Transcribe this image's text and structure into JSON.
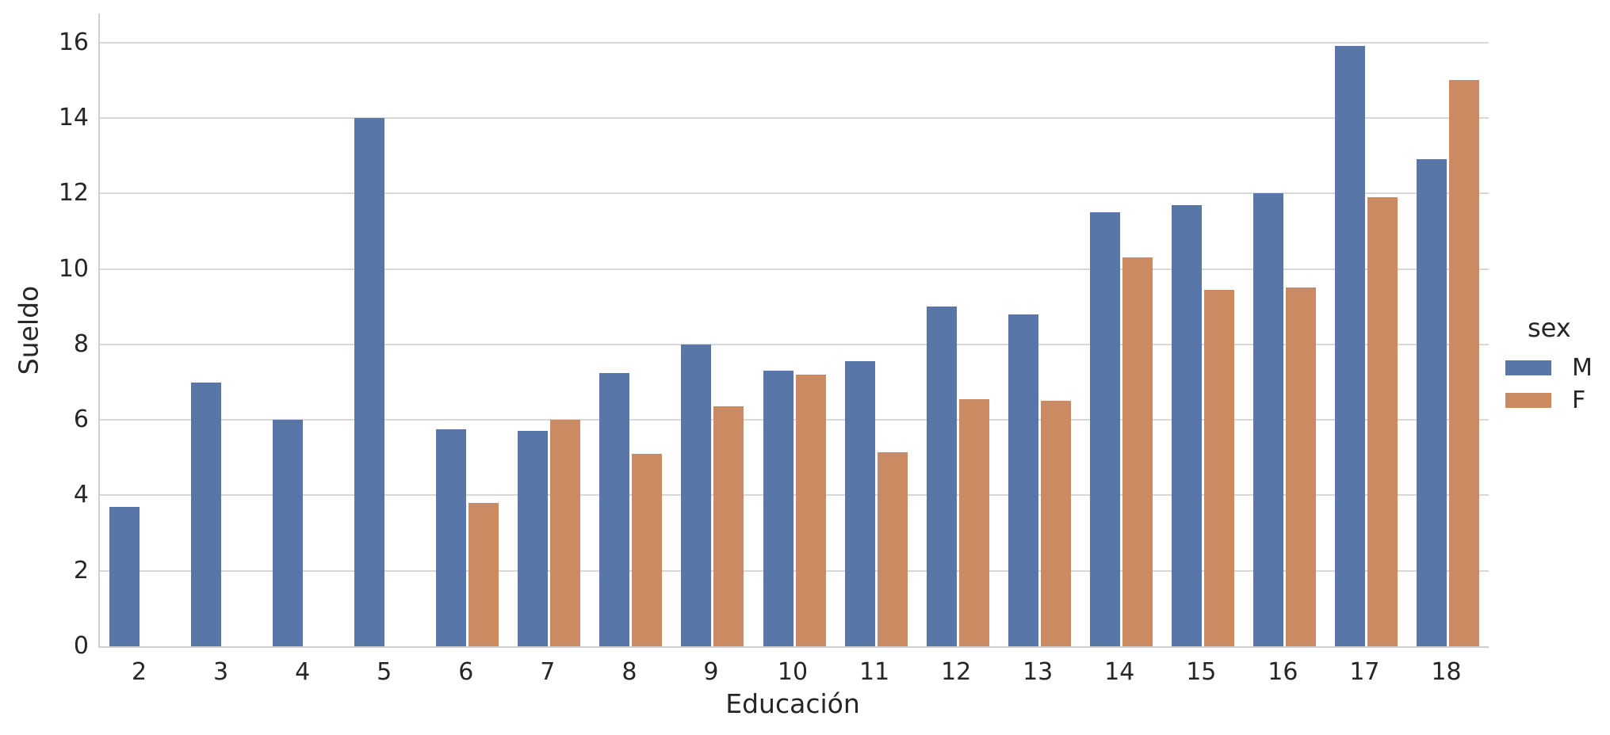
{
  "chart_data": {
    "type": "bar",
    "xlabel": "Educación",
    "ylabel": "Sueldo",
    "categories": [
      "2",
      "3",
      "4",
      "5",
      "6",
      "7",
      "8",
      "9",
      "10",
      "11",
      "12",
      "13",
      "14",
      "15",
      "16",
      "17",
      "18"
    ],
    "series": [
      {
        "name": "M",
        "color": "#5877A8",
        "values": [
          3.7,
          7.0,
          6.0,
          14.0,
          5.75,
          5.7,
          7.25,
          8.0,
          7.3,
          7.55,
          9.0,
          8.8,
          11.5,
          11.7,
          12.0,
          15.9,
          12.9
        ]
      },
      {
        "name": "F",
        "color": "#CC8A62",
        "values": [
          null,
          null,
          null,
          null,
          3.8,
          6.0,
          5.1,
          6.35,
          7.2,
          5.15,
          6.55,
          6.5,
          10.3,
          9.45,
          9.5,
          11.9,
          15.0
        ]
      }
    ],
    "yticks": [
      0,
      2,
      4,
      6,
      8,
      10,
      12,
      14,
      16
    ],
    "ylim": [
      0,
      16.77
    ],
    "grid": "horizontal",
    "legend": {
      "title": "sex",
      "position": "right-outside",
      "entries": [
        "M",
        "F"
      ]
    },
    "colors": {
      "background": "#FFFFFF",
      "gridline": "#D8D8D8",
      "spine": "#CFCFCF",
      "text": "#262626"
    }
  }
}
